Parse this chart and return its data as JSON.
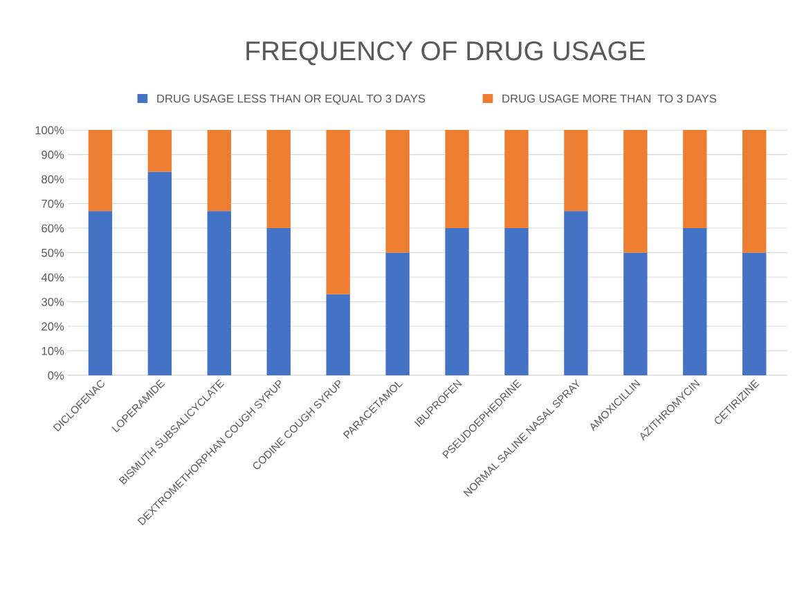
{
  "chart_data": {
    "type": "bar",
    "stacked": true,
    "title": "FREQUENCY OF DRUG USAGE",
    "categories": [
      "DICLOFENAC",
      "LOPERAMIDE",
      "BISMUTH SUBSALICYCLATE",
      "DEXTROMETHORPHAN COUGH SYRUP",
      "CODINE COUGH SYRUP",
      "PARACETAMOL",
      "IBUPROFEN",
      "PSEUDOEPHEDRINE",
      "NORMAL SALINE NASAL SPRAY",
      "AMOXICILLIN",
      "AZITHROMYCIN",
      "CETIRIZINE"
    ],
    "series": [
      {
        "name": "DRUG USAGE LESS THAN OR EQUAL TO 3 DAYS",
        "color": "#4472c4",
        "values": [
          67,
          83,
          67,
          60,
          33,
          50,
          60,
          60,
          67,
          50,
          60,
          50
        ]
      },
      {
        "name": "DRUG USAGE MORE THAN  TO 3 DAYS",
        "color": "#ed7d31",
        "values": [
          33,
          17,
          33,
          40,
          67,
          50,
          40,
          40,
          33,
          50,
          40,
          50
        ]
      }
    ],
    "ylim": [
      0,
      100
    ],
    "yticks": [
      {
        "value": 0,
        "label": "0%"
      },
      {
        "value": 10,
        "label": "10%"
      },
      {
        "value": 20,
        "label": "20%"
      },
      {
        "value": 30,
        "label": "30%"
      },
      {
        "value": 40,
        "label": "40%"
      },
      {
        "value": 50,
        "label": "50%"
      },
      {
        "value": 60,
        "label": "60%"
      },
      {
        "value": 70,
        "label": "70%"
      },
      {
        "value": 80,
        "label": "80%"
      },
      {
        "value": 90,
        "label": "90%"
      },
      {
        "value": 100,
        "label": "100%"
      }
    ],
    "grid": "y",
    "legend": "top"
  }
}
